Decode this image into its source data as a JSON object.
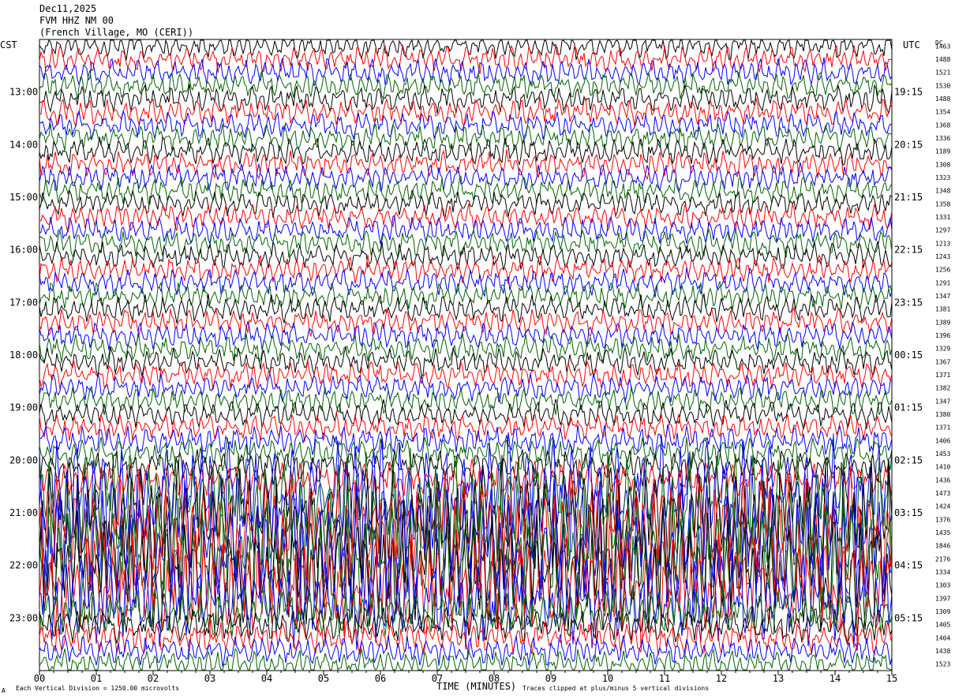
{
  "header": {
    "date": "Dec11,2025",
    "station": "FVM HHZ NM 00",
    "location": "(French Village, MO (CERI))"
  },
  "left_axis_label": "CST",
  "right_axis_label": "UTC",
  "dc_label": "DC",
  "footer": {
    "scale_note": "Each Vertical Division = 1250.00 microvolts",
    "clip_note": "Traces clipped at plus/minus 5 vertical divisions",
    "corner_mark": "A"
  },
  "colors": {
    "trace_cycle": [
      "#000000",
      "#ff0000",
      "#0000ff",
      "#006400"
    ]
  },
  "chart_data": {
    "type": "line",
    "title": "",
    "xlabel": "TIME (MINUTES)",
    "xlim": [
      0,
      15
    ],
    "x_ticks": [
      "00",
      "01",
      "02",
      "03",
      "04",
      "05",
      "06",
      "07",
      "08",
      "09",
      "10",
      "11",
      "12",
      "13",
      "14",
      "15"
    ],
    "row_count": 48,
    "cst_hour_labels": [
      "13:00",
      "14:00",
      "15:00",
      "16:00",
      "17:00",
      "18:00",
      "19:00",
      "20:00",
      "21:00",
      "22:00",
      "23:00"
    ],
    "utc_hour_labels": [
      "19:15",
      "20:15",
      "21:15",
      "22:15",
      "23:15",
      "00:15",
      "01:15",
      "02:15",
      "03:15",
      "04:15",
      "05:15"
    ],
    "dc_offsets": [
      1463,
      1488,
      1521,
      1530,
      1488,
      1354,
      1368,
      1336,
      1189,
      1308,
      1323,
      1348,
      1358,
      1331,
      1297,
      1213,
      1243,
      1256,
      1291,
      1347,
      1381,
      1389,
      1396,
      1329,
      1367,
      1371,
      1382,
      1347,
      1380,
      1371,
      1406,
      1453,
      1410,
      1436,
      1473,
      1424,
      1376,
      1435,
      1846,
      2176,
      1334,
      1303,
      1397,
      1309,
      1405,
      1404,
      1438,
      1523
    ],
    "amplitude_by_row": [
      0.9,
      0.9,
      0.9,
      0.9,
      0.9,
      0.9,
      0.9,
      0.9,
      0.9,
      0.9,
      0.9,
      0.9,
      0.9,
      0.9,
      0.9,
      0.9,
      0.9,
      0.9,
      0.9,
      0.9,
      0.9,
      0.9,
      0.9,
      0.9,
      0.9,
      0.9,
      0.9,
      0.9,
      0.9,
      0.9,
      1.0,
      1.1,
      1.2,
      1.3,
      3.6,
      3.8,
      4.0,
      4.2,
      4.2,
      4.2,
      4.0,
      3.8,
      3.2,
      1.6,
      1.2,
      1.1,
      1.0,
      1.0
    ]
  }
}
